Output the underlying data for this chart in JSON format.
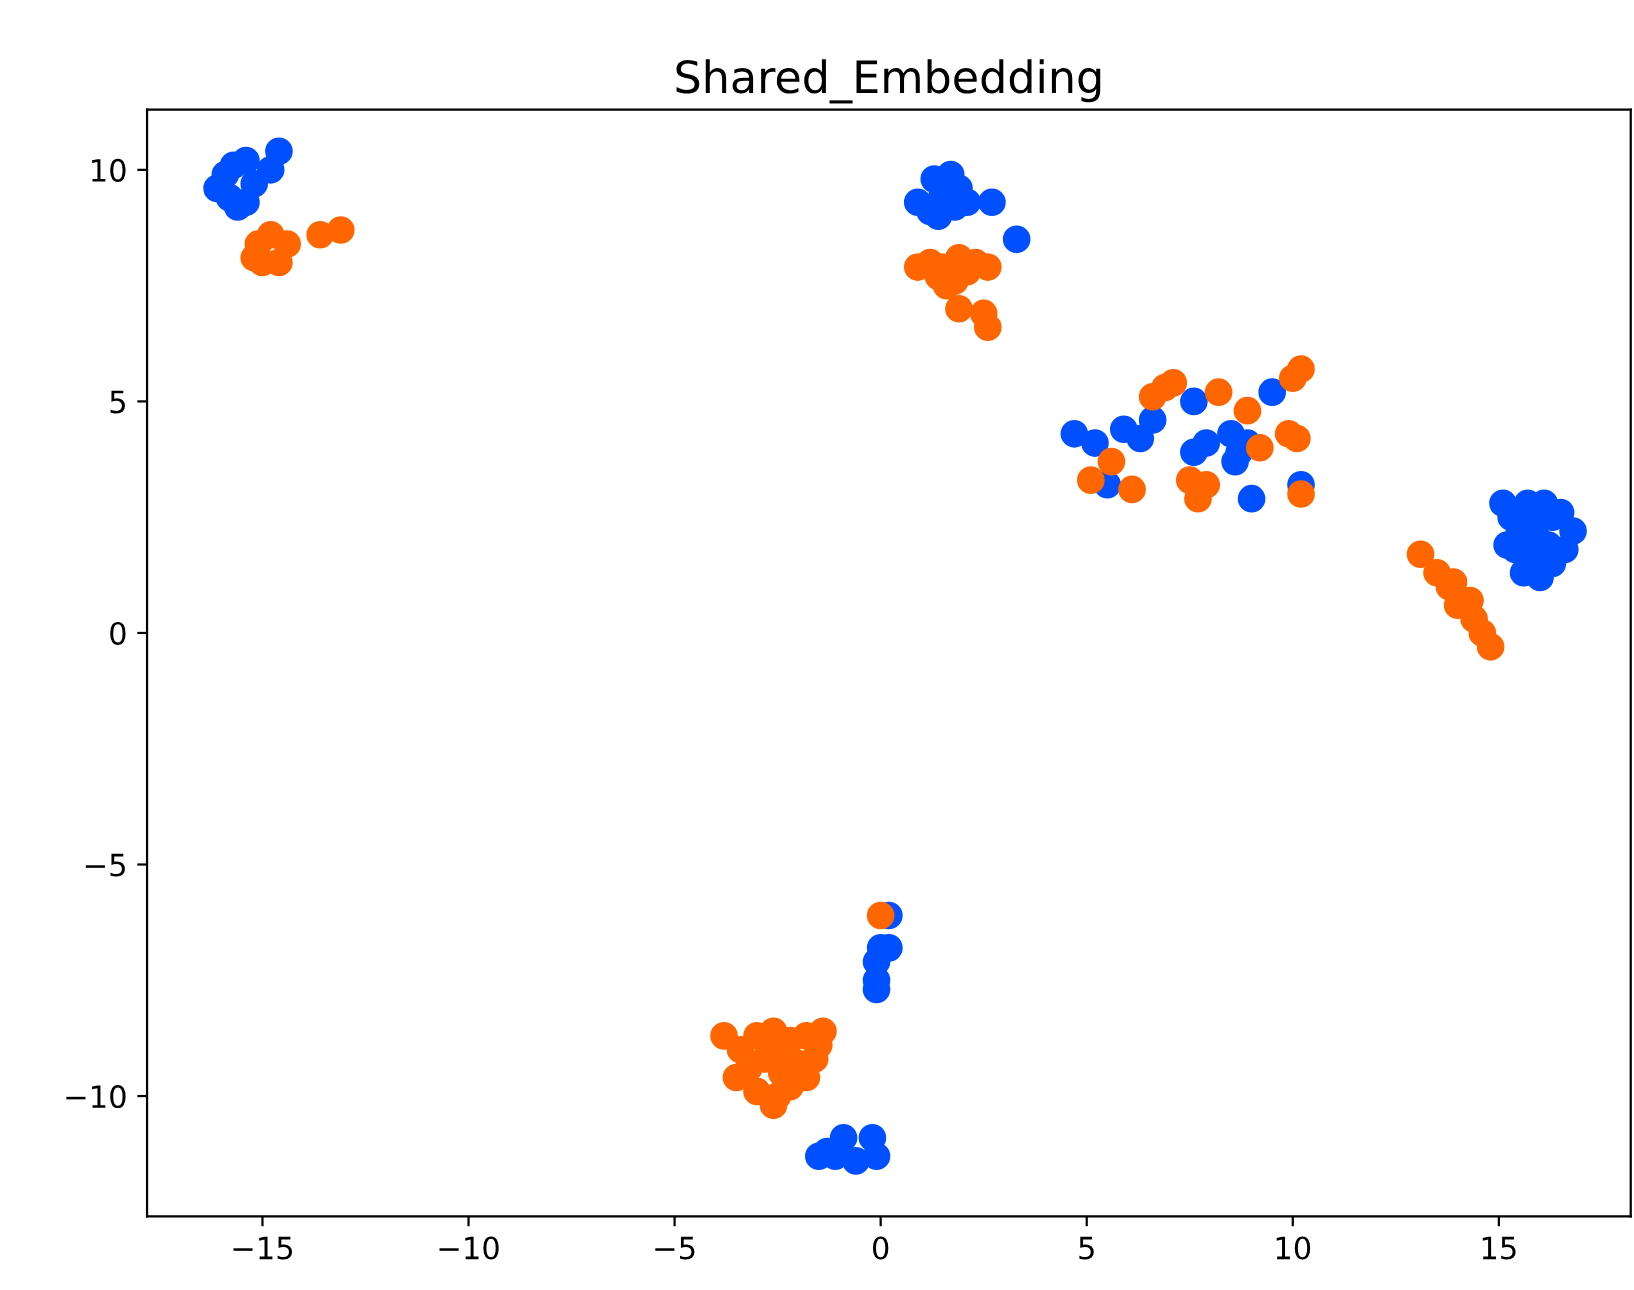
{
  "chart_data": {
    "type": "scatter",
    "title": "Shared_Embedding",
    "xlim": [
      -17.8,
      18.2
    ],
    "ylim": [
      -12.6,
      11.3
    ],
    "xticks": [
      {
        "value": -15,
        "label": "−15"
      },
      {
        "value": -10,
        "label": "−10"
      },
      {
        "value": -5,
        "label": "−5"
      },
      0,
      5,
      10,
      15
    ],
    "yticks": [
      {
        "value": -10,
        "label": "−10"
      },
      {
        "value": -5,
        "label": "−5"
      },
      0,
      5,
      10
    ],
    "grid": false,
    "legend": false,
    "marker": "circle",
    "series": [
      {
        "color": "#0050ff",
        "x": [
          -16.1,
          -15.9,
          -15.7,
          -15.8,
          -15.4,
          -15.2,
          -15.6,
          -15.4,
          -14.8,
          -14.6,
          0.9,
          1.3,
          1.5,
          1.7,
          1.9,
          2.1,
          1.2,
          1.4,
          1.8,
          2.7,
          3.3,
          4.7,
          5.2,
          5.5,
          5.9,
          6.3,
          6.6,
          7.6,
          7.6,
          7.9,
          8.5,
          8.7,
          8.9,
          9.0,
          9.5,
          10.2,
          8.6,
          15.1,
          15.3,
          15.5,
          15.7,
          15.9,
          16.1,
          16.3,
          16.5,
          16.8,
          15.4,
          15.8,
          16.2,
          16.6,
          15.6,
          16.0,
          15.9,
          16.3,
          15.2,
          0.2,
          0.0,
          -0.1,
          -0.1,
          -0.1,
          0.2,
          -1.5,
          -1.3,
          -1.1,
          -0.9,
          -0.1,
          -0.6,
          -0.2
        ],
        "values": [
          9.6,
          9.9,
          10.1,
          9.4,
          9.3,
          9.7,
          9.2,
          10.2,
          10.0,
          10.4,
          9.3,
          9.8,
          9.5,
          9.9,
          9.6,
          9.3,
          9.1,
          9.0,
          9.2,
          9.3,
          8.5,
          4.3,
          4.1,
          3.2,
          4.4,
          4.2,
          4.6,
          5.0,
          3.9,
          4.1,
          4.3,
          3.9,
          4.1,
          2.9,
          5.2,
          3.2,
          3.7,
          2.8,
          2.5,
          2.2,
          2.8,
          2.6,
          2.8,
          2.5,
          2.6,
          2.2,
          1.8,
          1.6,
          1.9,
          1.8,
          1.3,
          1.2,
          2.1,
          1.5,
          1.9,
          -6.1,
          -6.8,
          -7.1,
          -7.5,
          -7.7,
          -6.8,
          -11.3,
          -11.2,
          -11.3,
          -10.9,
          -11.3,
          -11.4,
          -10.9
        ]
      },
      {
        "color": "#ff6600",
        "x": [
          -15.2,
          -14.4,
          -15.0,
          -14.8,
          -14.6,
          -15.1,
          -13.6,
          -13.1,
          0.9,
          1.2,
          1.4,
          1.6,
          1.9,
          2.1,
          2.3,
          1.5,
          1.8,
          2.6,
          1.9,
          2.5,
          2.6,
          5.1,
          5.6,
          6.1,
          6.6,
          6.9,
          7.1,
          8.2,
          8.9,
          10.0,
          10.2,
          9.2,
          9.9,
          10.1,
          7.5,
          7.7,
          7.9,
          10.2,
          13.1,
          13.5,
          13.8,
          14.0,
          14.3,
          14.4,
          14.6,
          14.8,
          13.9,
          0.0,
          -3.8,
          -3.4,
          -3.0,
          -2.6,
          -2.2,
          -1.8,
          -1.5,
          -3.2,
          -2.8,
          -2.4,
          -2.0,
          -1.6,
          -3.0,
          -2.6,
          -2.2,
          -1.8,
          -3.5,
          -2.7,
          -2.3,
          -2.5,
          -1.4
        ],
        "values": [
          8.1,
          8.4,
          8.0,
          8.6,
          8.0,
          8.4,
          8.6,
          8.7,
          7.9,
          8.0,
          7.7,
          7.5,
          8.1,
          7.8,
          8.0,
          7.9,
          7.6,
          7.9,
          7.0,
          6.9,
          6.6,
          3.3,
          3.7,
          3.1,
          5.1,
          5.3,
          5.4,
          5.2,
          4.8,
          5.5,
          5.7,
          4.0,
          4.3,
          4.2,
          3.3,
          2.9,
          3.2,
          3.0,
          1.7,
          1.3,
          1.0,
          0.6,
          0.7,
          0.3,
          0.0,
          -0.3,
          1.1,
          -6.1,
          -8.7,
          -9.0,
          -8.7,
          -8.6,
          -8.8,
          -8.7,
          -8.9,
          -9.4,
          -9.2,
          -9.5,
          -9.3,
          -9.2,
          -9.9,
          -10.2,
          -9.8,
          -9.6,
          -9.6,
          -9.0,
          -9.3,
          -10.0,
          -8.6
        ]
      }
    ]
  }
}
